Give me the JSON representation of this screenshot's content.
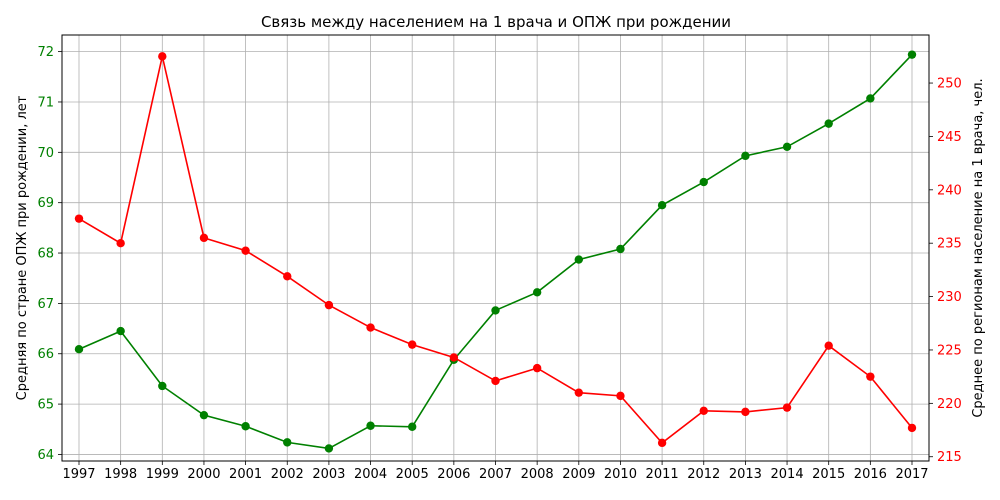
{
  "chart_data": {
    "type": "line",
    "title": "Связь между населением на 1 врача и ОПЖ при рождении",
    "xlabel": "",
    "ylabel_left": "Средняя по стране ОПЖ при рождении, лет",
    "ylabel_right": "Среднее по регионам население на 1 врача, чел.",
    "categories": [
      "1997",
      "1998",
      "1999",
      "2000",
      "2001",
      "2002",
      "2003",
      "2004",
      "2005",
      "2006",
      "2007",
      "2008",
      "2009",
      "2010",
      "2011",
      "2012",
      "2013",
      "2014",
      "2015",
      "2016",
      "2017"
    ],
    "left_axis": {
      "ylim": [
        63.87,
        72.33
      ],
      "ticks": [
        64,
        65,
        66,
        67,
        68,
        69,
        70,
        71,
        72
      ],
      "color": "#008000"
    },
    "right_axis": {
      "ylim": [
        214.6,
        254.5
      ],
      "ticks": [
        215,
        220,
        225,
        230,
        235,
        240,
        245,
        250
      ],
      "color": "#ff0000"
    },
    "grid": true,
    "series": [
      {
        "name": "ОПЖ при рождении",
        "axis": "left",
        "color": "#008000",
        "values": [
          66.09,
          66.45,
          65.36,
          64.78,
          64.56,
          64.24,
          64.12,
          64.57,
          64.55,
          65.88,
          66.86,
          67.22,
          67.87,
          68.08,
          68.95,
          69.41,
          69.93,
          70.11,
          70.57,
          71.07,
          71.94
        ]
      },
      {
        "name": "Население на 1 врача",
        "axis": "right",
        "color": "#ff0000",
        "values": [
          237.3,
          235.0,
          252.5,
          235.5,
          234.3,
          231.9,
          229.2,
          227.1,
          225.5,
          224.3,
          222.1,
          223.3,
          221.0,
          220.7,
          216.3,
          219.3,
          219.2,
          219.6,
          225.4,
          222.5,
          217.7
        ]
      }
    ]
  }
}
